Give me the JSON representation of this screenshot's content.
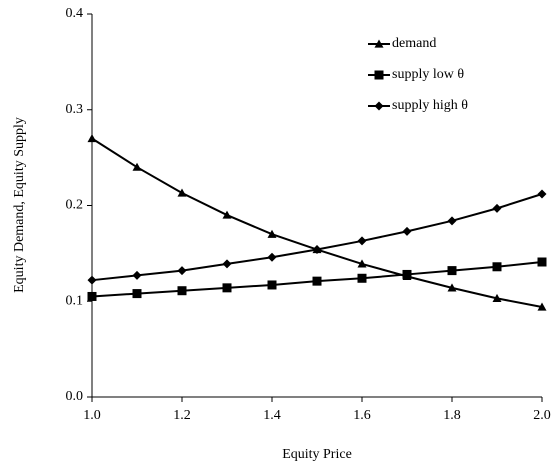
{
  "chart_data": {
    "type": "line",
    "xlabel": "Equity Price",
    "ylabel": "Equity Demand, Equity Supply",
    "x": [
      1.0,
      1.1,
      1.2,
      1.3,
      1.4,
      1.5,
      1.6,
      1.7,
      1.8,
      1.9,
      2.0
    ],
    "series": [
      {
        "name": "demand",
        "color": "#000000",
        "marker": "triangle",
        "values": [
          0.27,
          0.24,
          0.213,
          0.19,
          0.17,
          0.154,
          0.139,
          0.126,
          0.114,
          0.103,
          0.094
        ]
      },
      {
        "name": "supply low θ",
        "color": "#000000",
        "marker": "square",
        "values": [
          0.105,
          0.108,
          0.111,
          0.114,
          0.117,
          0.121,
          0.124,
          0.128,
          0.132,
          0.136,
          0.141
        ]
      },
      {
        "name": "supply high θ",
        "color": "#000000",
        "marker": "diamond",
        "values": [
          0.122,
          0.127,
          0.132,
          0.139,
          0.146,
          0.154,
          0.163,
          0.173,
          0.184,
          0.197,
          0.212
        ]
      }
    ],
    "xlim": [
      1.0,
      2.0
    ],
    "xticks": [
      {
        "value": 1.0,
        "label": "1.0"
      },
      1.2,
      1.4,
      1.6,
      1.8,
      {
        "value": 2.0,
        "label": "2.0"
      }
    ],
    "ylim": [
      0.0,
      0.4
    ],
    "yticks": [
      {
        "value": 0.0,
        "label": "0.0"
      },
      0.1,
      0.2,
      0.3,
      0.4
    ],
    "grid": false,
    "legend": "upper right"
  }
}
